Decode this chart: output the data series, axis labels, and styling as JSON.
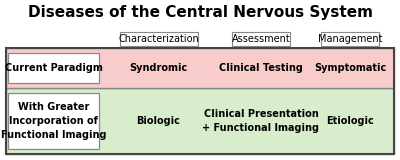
{
  "title": "Diseases of the Central Nervous System",
  "title_fontsize": 11,
  "title_fontweight": "bold",
  "col_headers": [
    "Characterization",
    "Assessment",
    "Management"
  ],
  "row1_bg": "#f9cccc",
  "row2_bg": "#d8edcc",
  "row1_label": "Current Paradigm",
  "row2_label": "With Greater\nIncorporation of\nFunctional Imaging",
  "row1_cells": [
    "Syndromic",
    "Clinical Testing",
    "Symptomatic"
  ],
  "row2_cells": [
    "Biologic",
    "Clinical Presentation\n+ Functional Imaging",
    "Etiologic"
  ],
  "border_color": "#888888",
  "outer_border_color": "#444444",
  "text_color": "#000000",
  "cell_fontsize": 7.0,
  "label_fontsize": 7.0,
  "header_fontsize": 7.0,
  "background_color": "#ffffff"
}
